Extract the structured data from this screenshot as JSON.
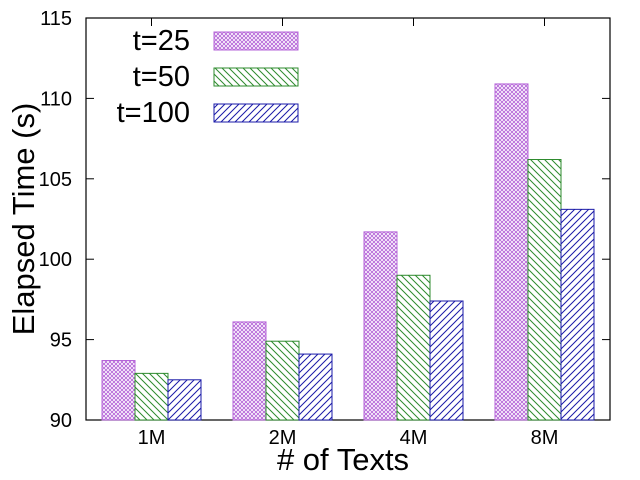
{
  "chart_data": {
    "type": "bar",
    "xlabel": "# of Texts",
    "ylabel": "Elapsed Time (s)",
    "categories": [
      "1M",
      "2M",
      "4M",
      "8M"
    ],
    "ylim": [
      90,
      115
    ],
    "yticks": [
      "90",
      "95",
      "100",
      "105",
      "110",
      "115"
    ],
    "legend_position": "top-left",
    "grid": false,
    "series": [
      {
        "name": "t=25",
        "values": [
          93.7,
          96.1,
          101.7,
          110.9
        ],
        "color": "#b565d8",
        "pattern": "crosshatch"
      },
      {
        "name": "t=50",
        "values": [
          92.9,
          94.9,
          99.0,
          106.2
        ],
        "color": "#2e8b2e",
        "pattern": "diagonal-back"
      },
      {
        "name": "t=100",
        "values": [
          92.5,
          94.1,
          97.4,
          103.1
        ],
        "color": "#1a1aa8",
        "pattern": "diagonal-forward"
      }
    ]
  }
}
